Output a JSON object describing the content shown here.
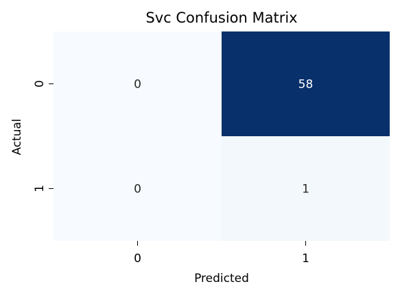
{
  "chart_data": {
    "type": "heatmap",
    "title": "Svc Confusion Matrix",
    "xlabel": "Predicted",
    "ylabel": "Actual",
    "x_categories": [
      "0",
      "1"
    ],
    "y_categories": [
      "0",
      "1"
    ],
    "values": [
      [
        0,
        58
      ],
      [
        0,
        1
      ]
    ],
    "value_labels": [
      [
        "0",
        "58"
      ],
      [
        "0",
        "1"
      ]
    ],
    "colormap": "Blues",
    "color_low": "#f7fbff",
    "color_high": "#08306b",
    "colorbar": false
  }
}
